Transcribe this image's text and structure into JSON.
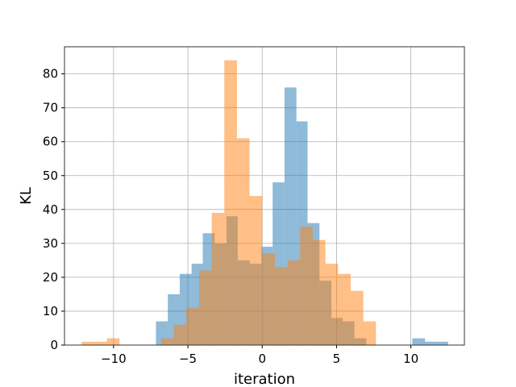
{
  "chart_data": {
    "type": "histogram",
    "title": "",
    "xlabel": "iteration",
    "ylabel": "KL",
    "xlim": [
      -13.3,
      13.6
    ],
    "ylim": [
      0,
      88
    ],
    "x_ticks": [
      -10,
      -5,
      0,
      5,
      10
    ],
    "x_tick_labels": [
      "−10",
      "−5",
      "0",
      "5",
      "10"
    ],
    "y_ticks": [
      0,
      10,
      20,
      30,
      40,
      50,
      60,
      70,
      80
    ],
    "y_tick_labels": [
      "0",
      "10",
      "20",
      "30",
      "40",
      "50",
      "60",
      "70",
      "80"
    ],
    "grid": true,
    "legend": false,
    "series": [
      {
        "color": "#1f77b4",
        "alpha": 0.5,
        "bins": [
          [
            -7.15,
            -6.35,
            7
          ],
          [
            -6.35,
            -5.55,
            15
          ],
          [
            -5.55,
            -4.75,
            21
          ],
          [
            -4.75,
            -4.0,
            24
          ],
          [
            -4.0,
            -3.2,
            33
          ],
          [
            -3.2,
            -2.4,
            30
          ],
          [
            -2.4,
            -1.65,
            38
          ],
          [
            -1.65,
            -0.85,
            25
          ],
          [
            -0.85,
            -0.05,
            24
          ],
          [
            -0.05,
            0.7,
            29
          ],
          [
            0.7,
            1.5,
            48
          ],
          [
            1.5,
            2.3,
            76
          ],
          [
            2.3,
            3.05,
            66
          ],
          [
            3.05,
            3.85,
            36
          ],
          [
            3.85,
            4.65,
            19
          ],
          [
            4.65,
            5.4,
            8
          ],
          [
            5.4,
            6.2,
            7
          ],
          [
            6.2,
            7.0,
            2
          ],
          [
            10.1,
            10.95,
            2
          ],
          [
            10.95,
            11.7,
            1
          ],
          [
            11.7,
            12.5,
            1
          ]
        ]
      },
      {
        "color": "#ff7f0e",
        "alpha": 0.5,
        "bins": [
          [
            -12.15,
            -11.3,
            1
          ],
          [
            -11.3,
            -10.45,
            1
          ],
          [
            -10.45,
            -9.6,
            2
          ],
          [
            -6.8,
            -5.95,
            2
          ],
          [
            -5.95,
            -5.1,
            6
          ],
          [
            -5.1,
            -4.25,
            11
          ],
          [
            -4.25,
            -3.4,
            22
          ],
          [
            -3.4,
            -2.55,
            39
          ],
          [
            -2.55,
            -1.7,
            84
          ],
          [
            -1.7,
            -0.85,
            61
          ],
          [
            -0.85,
            0.0,
            44
          ],
          [
            0.0,
            0.85,
            27
          ],
          [
            0.85,
            1.7,
            23
          ],
          [
            1.7,
            2.55,
            25
          ],
          [
            2.55,
            3.4,
            35
          ],
          [
            3.4,
            4.25,
            31
          ],
          [
            4.25,
            5.1,
            24
          ],
          [
            5.1,
            5.95,
            21
          ],
          [
            5.95,
            6.8,
            16
          ],
          [
            6.8,
            7.65,
            7
          ]
        ]
      }
    ]
  }
}
